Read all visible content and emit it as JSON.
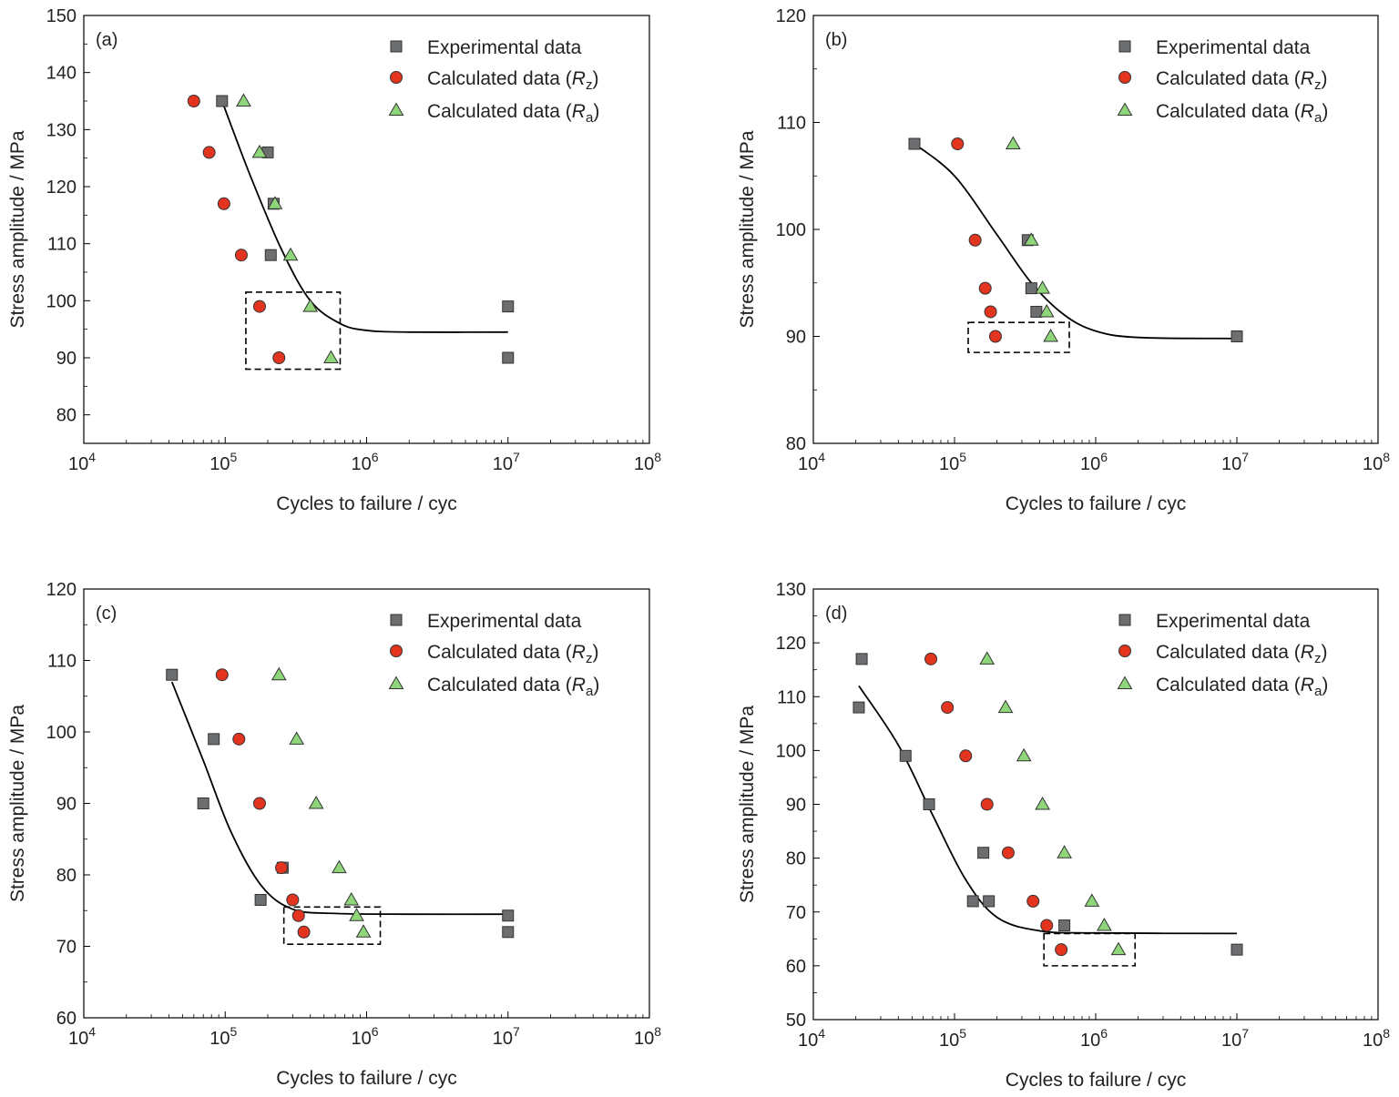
{
  "colors": {
    "experimental": "#6d6e70",
    "calculated_rz": "#e3341f",
    "calculated_ra": "#8fd67a",
    "fit_line": "#000000",
    "box": "#000000"
  },
  "chart_data": [
    {
      "panel_label": "(a)",
      "type": "scatter",
      "xlabel": "Cycles to failure / cyc",
      "ylabel": "Stress amplitude / MPa",
      "x_scale": "log",
      "xlim": [
        10000,
        100000000
      ],
      "ylim": [
        75,
        150
      ],
      "y_ticks": [
        80,
        90,
        100,
        110,
        120,
        130,
        140,
        150
      ],
      "legend_position": "top-right",
      "series": [
        {
          "name": "Experimental data",
          "marker": "square",
          "points": [
            [
              95000,
              135
            ],
            [
              200000,
              126
            ],
            [
              220000,
              117
            ],
            [
              210000,
              108
            ],
            [
              10000000,
              99
            ],
            [
              10000000,
              90
            ]
          ]
        },
        {
          "name": "Calculated data (Rz)",
          "marker": "circle",
          "points": [
            [
              60000,
              135
            ],
            [
              77000,
              126
            ],
            [
              98000,
              117
            ],
            [
              130000,
              108
            ],
            [
              175000,
              99
            ],
            [
              240000,
              90
            ]
          ]
        },
        {
          "name": "Calculated data (Ra)",
          "marker": "triangle",
          "points": [
            [
              135000,
              135
            ],
            [
              175000,
              126
            ],
            [
              225000,
              117
            ],
            [
              290000,
              108
            ],
            [
              400000,
              99
            ],
            [
              560000,
              90
            ]
          ]
        }
      ],
      "fit_curve": [
        [
          95000,
          135
        ],
        [
          150000,
          122
        ],
        [
          250000,
          109
        ],
        [
          400000,
          100
        ],
        [
          650000,
          96
        ],
        [
          1000000,
          94.8
        ],
        [
          2000000,
          94.5
        ],
        [
          10000000,
          94.5
        ]
      ],
      "highlight_box": {
        "x": [
          140000,
          650000
        ],
        "y": [
          88,
          101.5
        ]
      }
    },
    {
      "panel_label": "(b)",
      "type": "scatter",
      "xlabel": "Cycles to failure / cyc",
      "ylabel": "Stress amplitude / MPa",
      "x_scale": "log",
      "xlim": [
        10000,
        100000000
      ],
      "ylim": [
        80,
        120
      ],
      "y_ticks": [
        80,
        90,
        100,
        110,
        120
      ],
      "legend_position": "top-right",
      "series": [
        {
          "name": "Experimental data",
          "marker": "square",
          "points": [
            [
              52000,
              108
            ],
            [
              330000,
              99
            ],
            [
              350000,
              94.5
            ],
            [
              380000,
              92.3
            ],
            [
              10000000,
              90
            ]
          ]
        },
        {
          "name": "Calculated data (Rz)",
          "marker": "circle",
          "points": [
            [
              105000,
              108
            ],
            [
              140000,
              99
            ],
            [
              165000,
              94.5
            ],
            [
              180000,
              92.3
            ],
            [
              195000,
              90
            ]
          ]
        },
        {
          "name": "Calculated data (Ra)",
          "marker": "triangle",
          "points": [
            [
              260000,
              108
            ],
            [
              350000,
              99
            ],
            [
              420000,
              94.5
            ],
            [
              450000,
              92.3
            ],
            [
              480000,
              90
            ]
          ]
        }
      ],
      "fit_curve": [
        [
          52000,
          108
        ],
        [
          100000,
          105
        ],
        [
          200000,
          99.5
        ],
        [
          350000,
          95
        ],
        [
          600000,
          92
        ],
        [
          1000000,
          90.5
        ],
        [
          2000000,
          89.9
        ],
        [
          10000000,
          89.8
        ]
      ],
      "highlight_box": {
        "x": [
          125000,
          650000
        ],
        "y": [
          88.5,
          91.3
        ]
      }
    },
    {
      "panel_label": "(c)",
      "type": "scatter",
      "xlabel": "Cycles to failure / cyc",
      "ylabel": "Stress amplitude / MPa",
      "x_scale": "log",
      "xlim": [
        10000,
        100000000
      ],
      "ylim": [
        60,
        120
      ],
      "y_ticks": [
        60,
        70,
        80,
        90,
        100,
        110,
        120
      ],
      "legend_position": "top-right",
      "series": [
        {
          "name": "Experimental data",
          "marker": "square",
          "points": [
            [
              42000,
              108
            ],
            [
              83000,
              99
            ],
            [
              70000,
              90
            ],
            [
              255000,
              81
            ],
            [
              178000,
              76.5
            ],
            [
              10000000,
              74.3
            ],
            [
              10000000,
              72
            ]
          ]
        },
        {
          "name": "Calculated data (Rz)",
          "marker": "circle",
          "points": [
            [
              95000,
              108
            ],
            [
              125000,
              99
            ],
            [
              175000,
              90
            ],
            [
              250000,
              81
            ],
            [
              300000,
              76.5
            ],
            [
              330000,
              74.3
            ],
            [
              360000,
              72
            ]
          ]
        },
        {
          "name": "Calculated data (Ra)",
          "marker": "triangle",
          "points": [
            [
              240000,
              108
            ],
            [
              320000,
              99
            ],
            [
              440000,
              90
            ],
            [
              640000,
              81
            ],
            [
              780000,
              76.5
            ],
            [
              850000,
              74.3
            ],
            [
              950000,
              72
            ]
          ]
        }
      ],
      "fit_curve": [
        [
          42000,
          107
        ],
        [
          70000,
          96
        ],
        [
          110000,
          86
        ],
        [
          180000,
          78.5
        ],
        [
          300000,
          75.2
        ],
        [
          600000,
          74.6
        ],
        [
          2000000,
          74.5
        ],
        [
          10000000,
          74.5
        ]
      ],
      "highlight_box": {
        "x": [
          260000,
          1250000
        ],
        "y": [
          70.3,
          75.5
        ]
      }
    },
    {
      "panel_label": "(d)",
      "type": "scatter",
      "xlabel": "Cycles to failure / cyc",
      "ylabel": "Stress amplitude / MPa",
      "x_scale": "log",
      "xlim": [
        10000,
        100000000
      ],
      "ylim": [
        50,
        130
      ],
      "y_ticks": [
        50,
        60,
        70,
        80,
        90,
        100,
        110,
        120,
        130
      ],
      "legend_position": "top-right",
      "series": [
        {
          "name": "Experimental data",
          "marker": "square",
          "points": [
            [
              22000,
              117
            ],
            [
              21000,
              108
            ],
            [
              45000,
              99
            ],
            [
              66000,
              90
            ],
            [
              160000,
              81
            ],
            [
              135000,
              72
            ],
            [
              175000,
              72
            ],
            [
              600000,
              67.5
            ],
            [
              10000000,
              63
            ]
          ]
        },
        {
          "name": "Calculated data (Rz)",
          "marker": "circle",
          "points": [
            [
              68000,
              117
            ],
            [
              89000,
              108
            ],
            [
              120000,
              99
            ],
            [
              170000,
              90
            ],
            [
              240000,
              81
            ],
            [
              360000,
              72
            ],
            [
              450000,
              67.5
            ],
            [
              570000,
              63
            ]
          ]
        },
        {
          "name": "Calculated data (Ra)",
          "marker": "triangle",
          "points": [
            [
              170000,
              117
            ],
            [
              230000,
              108
            ],
            [
              310000,
              99
            ],
            [
              420000,
              90
            ],
            [
              600000,
              81
            ],
            [
              940000,
              72
            ],
            [
              1150000,
              67.5
            ],
            [
              1450000,
              63
            ]
          ]
        }
      ],
      "fit_curve": [
        [
          21000,
          112
        ],
        [
          40000,
          101
        ],
        [
          70000,
          88
        ],
        [
          120000,
          76
        ],
        [
          200000,
          69
        ],
        [
          400000,
          66.5
        ],
        [
          1000000,
          66.1
        ],
        [
          10000000,
          66
        ]
      ],
      "highlight_box": {
        "x": [
          430000,
          1900000
        ],
        "y": [
          60,
          66
        ]
      }
    }
  ]
}
